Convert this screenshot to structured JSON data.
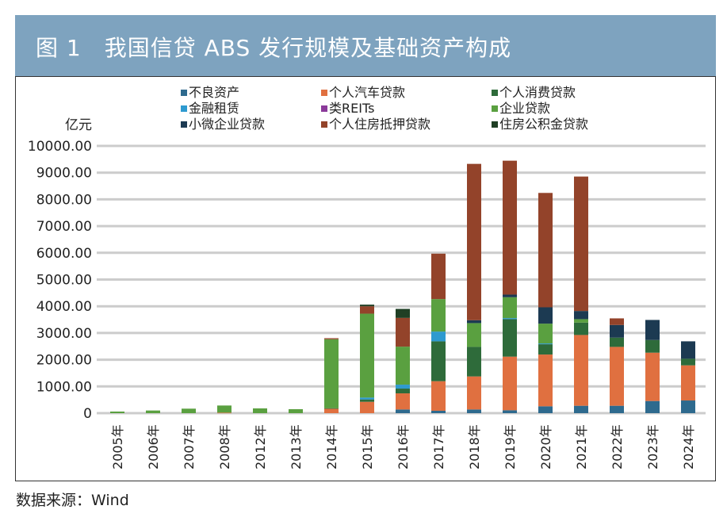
{
  "title": "图 1　我国信贷 ABS 发行规模及基础资产构成",
  "source": "数据来源：Wind",
  "chart_data": {
    "type": "bar",
    "stacked": true,
    "title": "图 1　我国信贷 ABS 发行规模及基础资产构成",
    "ylabel": "亿元",
    "xlabel": "",
    "ylim": [
      0,
      10000
    ],
    "yticks": [
      "0",
      "1000.00",
      "2000.00",
      "3000.00",
      "4000.00",
      "5000.00",
      "6000.00",
      "7000.00",
      "8000.00",
      "9000.00",
      "10000.00"
    ],
    "grid": true,
    "legend": "top",
    "categories": [
      "2005年",
      "2006年",
      "2007年",
      "2008年",
      "2012年",
      "2013年",
      "2014年",
      "2015年",
      "2016年",
      "2017年",
      "2018年",
      "2019年",
      "2020年",
      "2021年",
      "2022年",
      "2023年",
      "2024年"
    ],
    "series": [
      {
        "name": "不良资产",
        "color": "#2e6a8e",
        "values": [
          0,
          0,
          0,
          0,
          0,
          0,
          0,
          0,
          138,
          90,
          138,
          109,
          257,
          277,
          277,
          455,
          474
        ]
      },
      {
        "name": "个人汽车贷款",
        "color": "#e07040",
        "values": [
          0,
          0,
          0,
          20,
          0,
          0,
          168,
          425,
          603,
          1106,
          1236,
          2006,
          1937,
          2648,
          2203,
          1808,
          1315
        ]
      },
      {
        "name": "个人消费贷款",
        "color": "#2e6b3a",
        "values": [
          0,
          0,
          0,
          0,
          0,
          0,
          20,
          89,
          178,
          1492,
          1106,
          1403,
          385,
          464,
          346,
          474,
          247
        ]
      },
      {
        "name": "金融租赁",
        "color": "#2e9ad0",
        "values": [
          0,
          0,
          0,
          0,
          0,
          0,
          0,
          69,
          148,
          365,
          0,
          39,
          30,
          0,
          0,
          0,
          0
        ]
      },
      {
        "name": "类REITs",
        "color": "#8b3a9a",
        "values": [
          0,
          0,
          0,
          0,
          0,
          0,
          0,
          0,
          0,
          0,
          0,
          0,
          0,
          0,
          0,
          0,
          0
        ]
      },
      {
        "name": "企业贷款",
        "color": "#5aa040",
        "values": [
          60,
          99,
          168,
          266,
          178,
          148,
          2577,
          3140,
          1422,
          1216,
          890,
          781,
          741,
          129,
          0,
          0,
          0
        ]
      },
      {
        "name": "小微企业贷款",
        "color": "#1c3a52",
        "values": [
          0,
          0,
          0,
          0,
          0,
          0,
          0,
          0,
          0,
          0,
          108,
          99,
          612,
          306,
          474,
          751,
          652
        ]
      },
      {
        "name": "个人住房抵押贷款",
        "color": "#93432a",
        "values": [
          0,
          0,
          0,
          0,
          0,
          0,
          40,
          277,
          1076,
          1699,
          5850,
          5010,
          4279,
          5030,
          247,
          0,
          0
        ]
      },
      {
        "name": "住房公积金贷款",
        "color": "#1f3f24",
        "values": [
          0,
          0,
          0,
          0,
          0,
          0,
          0,
          60,
          336,
          0,
          0,
          0,
          0,
          0,
          0,
          0,
          0
        ]
      }
    ]
  }
}
